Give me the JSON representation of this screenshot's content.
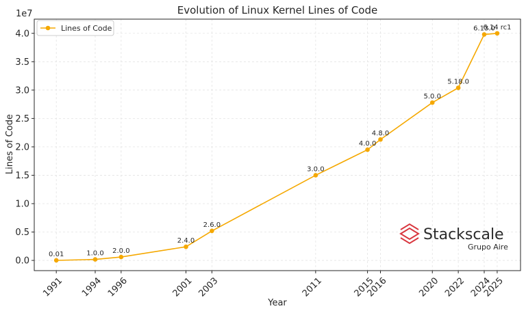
{
  "chart_data": {
    "type": "line",
    "title": "Evolution of Linux Kernel Lines of Code",
    "xlabel": "Year",
    "ylabel": "Lines of Code",
    "y_offset_label": "1e7",
    "ylim": [
      -1800000,
      42500000
    ],
    "xlim": [
      1989.3,
      2026.8
    ],
    "y_ticks": [
      0,
      5000000,
      10000000,
      15000000,
      20000000,
      25000000,
      30000000,
      35000000,
      40000000
    ],
    "y_tick_labels": [
      "0.0",
      "0.5",
      "1.0",
      "1.5",
      "2.0",
      "2.5",
      "3.0",
      "3.5",
      "4.0"
    ],
    "x_ticks": [
      1991,
      1994,
      1996,
      2001,
      2003,
      2011,
      2015,
      2016,
      2020,
      2022,
      2024,
      2025
    ],
    "x_tick_labels": [
      "1991",
      "1994",
      "1996",
      "2001",
      "2003",
      "2011",
      "2015",
      "2016",
      "2020",
      "2022",
      "2024",
      "2025"
    ],
    "grid": true,
    "legend_position": "top-left",
    "color": "#f5a800",
    "series": [
      {
        "name": "Lines of Code",
        "x": [
          1991,
          1994,
          1996,
          2001,
          2003,
          2011,
          2015,
          2016,
          2020,
          2022,
          2024,
          2025
        ],
        "y": [
          10000,
          180000,
          600000,
          2400000,
          5200000,
          15000000,
          19500000,
          21300000,
          27800000,
          30400000,
          39800000,
          40000000
        ],
        "labels": [
          "0.01",
          "1.0.0",
          "2.0.0",
          "2.4.0",
          "2.6.0",
          "3.0.0",
          "4.0.0",
          "4.8.0",
          "5.0.0",
          "5.18.0",
          "6.13.0",
          "6.14 rc1"
        ]
      }
    ]
  },
  "logo": {
    "name": "Stackscale",
    "subtitle": "Grupo Aire",
    "color": "#d9363e"
  }
}
